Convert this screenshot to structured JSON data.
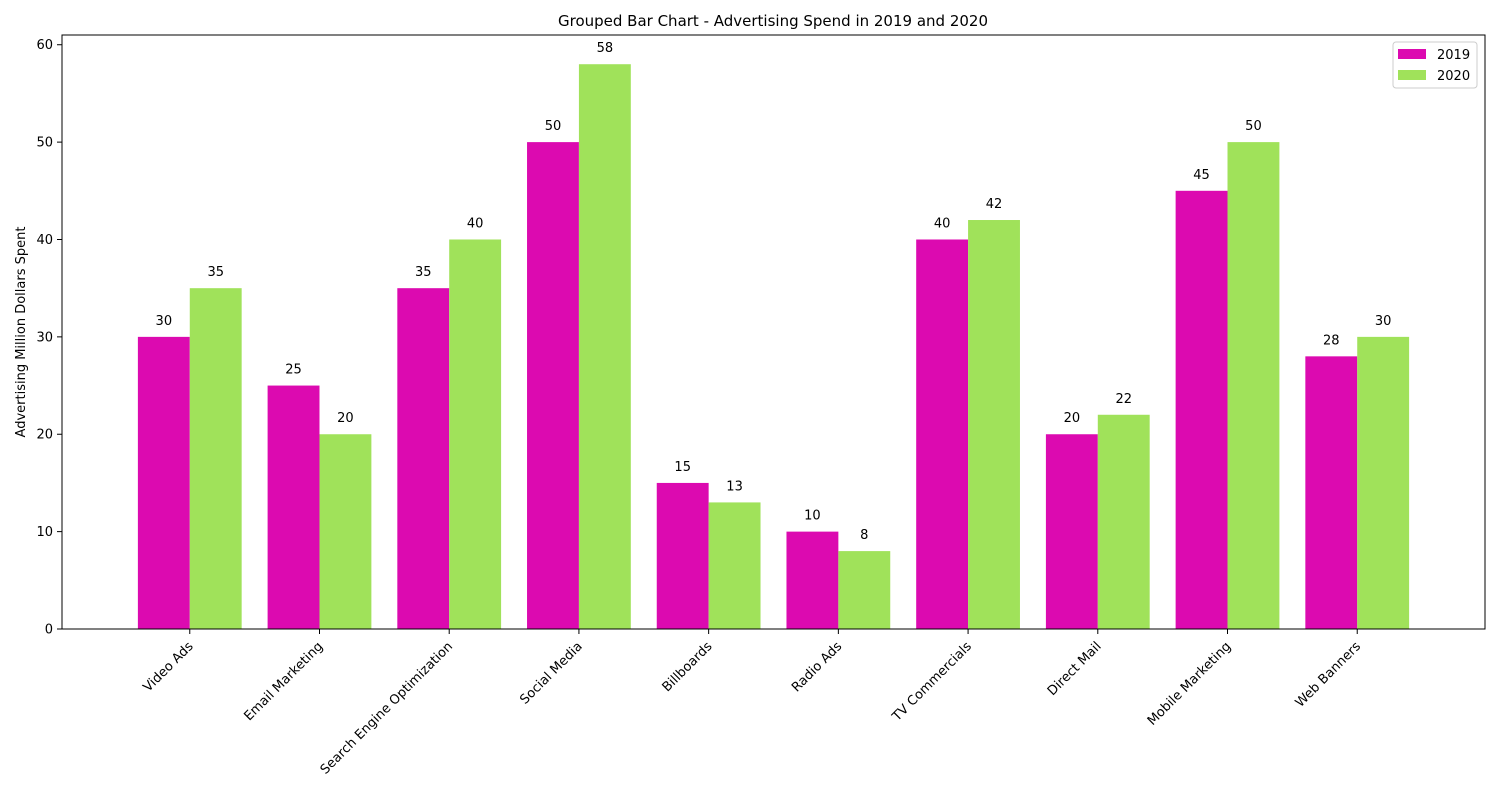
{
  "chart_data": {
    "type": "bar",
    "title": "Grouped Bar Chart - Advertising Spend in 2019 and 2020",
    "xlabel": "",
    "ylabel": "Advertising Million Dollars Spent",
    "categories": [
      "Video Ads",
      "Email Marketing",
      "Search Engine Optimization",
      "Social Media",
      "Billboards",
      "Radio Ads",
      "TV Commercials",
      "Direct Mail",
      "Mobile Marketing",
      "Web Banners"
    ],
    "series": [
      {
        "name": "2019",
        "color": "#dc0ab0",
        "values": [
          30,
          25,
          35,
          50,
          15,
          10,
          40,
          20,
          45,
          28
        ]
      },
      {
        "name": "2020",
        "color": "#a0e25a",
        "values": [
          35,
          20,
          40,
          58,
          13,
          8,
          42,
          22,
          50,
          30
        ]
      }
    ],
    "ylim": [
      0,
      61
    ],
    "yticks": [
      0,
      10,
      20,
      30,
      40,
      50,
      60
    ],
    "grid": false,
    "legend_position": "top-right"
  }
}
